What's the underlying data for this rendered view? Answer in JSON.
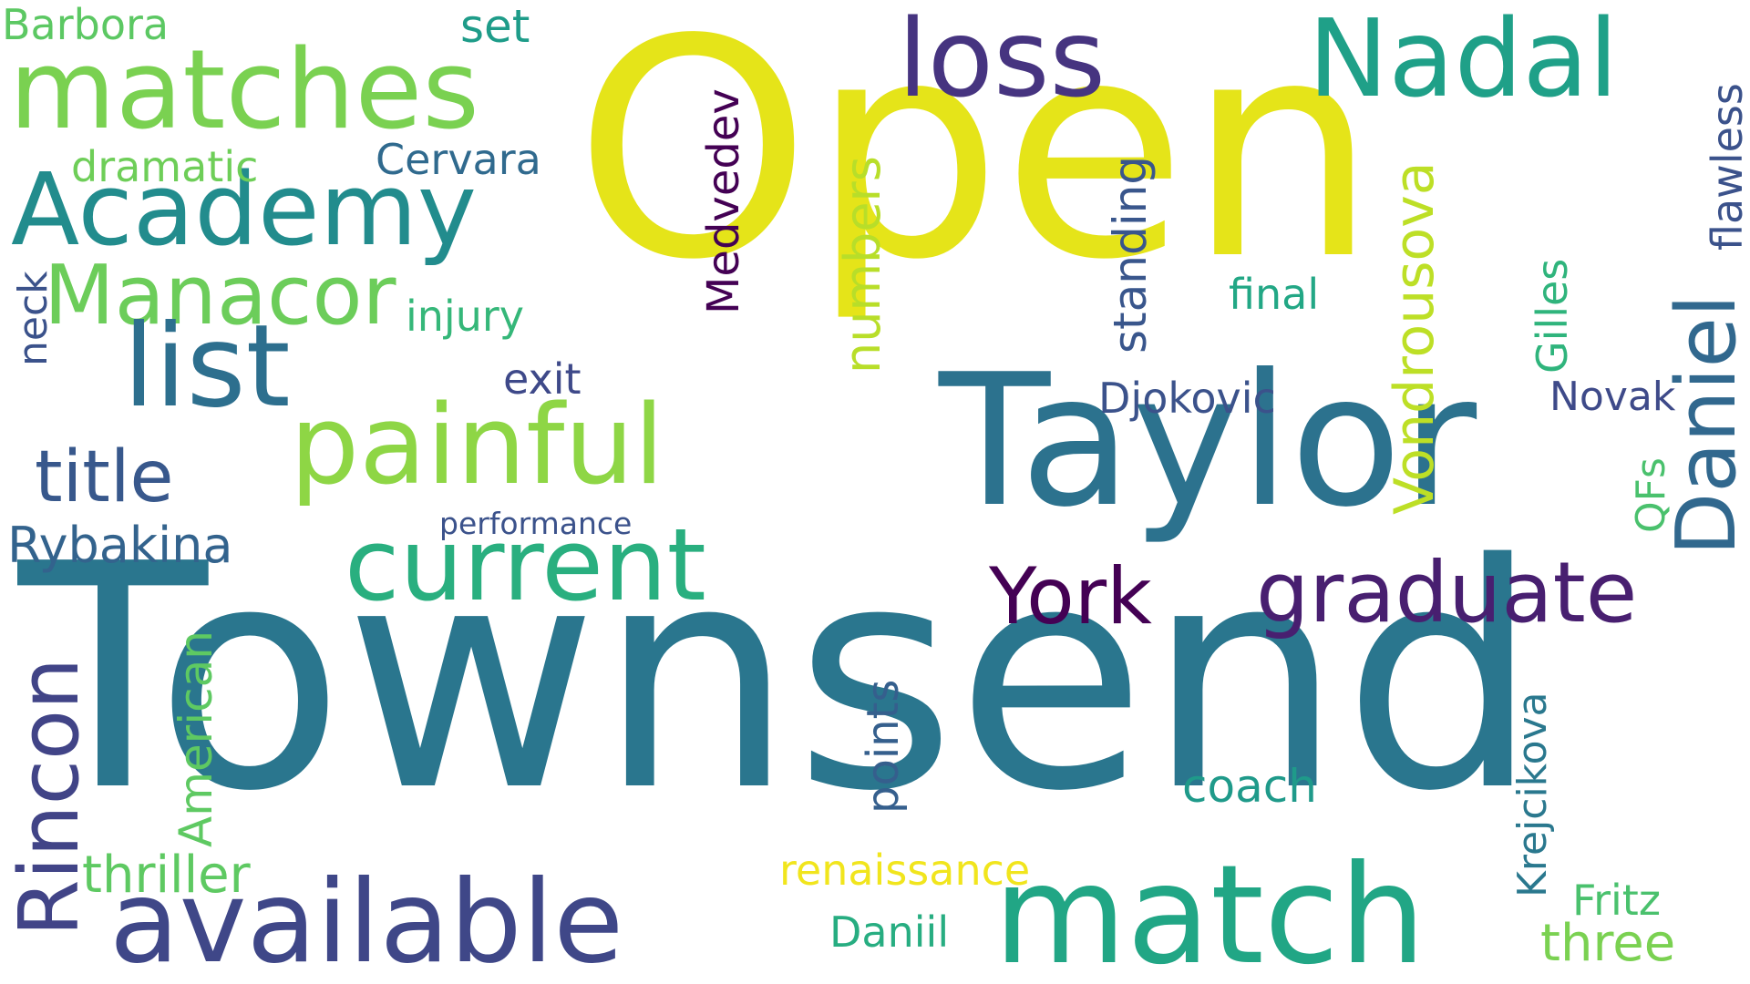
{
  "words": [
    {
      "id": "word-open",
      "text": "Open",
      "color": "#e5e419",
      "vertical": false
    },
    {
      "id": "word-townsend",
      "text": "Townsend",
      "color": "#2a768e",
      "vertical": false
    },
    {
      "id": "word-taylor",
      "text": "Taylor",
      "color": "#2c728e",
      "vertical": false
    },
    {
      "id": "word-match",
      "text": "match",
      "color": "#21a685",
      "vertical": false
    },
    {
      "id": "word-matches",
      "text": "matches",
      "color": "#7ad151",
      "vertical": false
    },
    {
      "id": "word-loss",
      "text": "loss",
      "color": "#463480",
      "vertical": false
    },
    {
      "id": "word-nadal",
      "text": "Nadal",
      "color": "#1fa088",
      "vertical": false
    },
    {
      "id": "word-academy",
      "text": "Academy",
      "color": "#228c8d",
      "vertical": false
    },
    {
      "id": "word-manacor",
      "text": "Manacor",
      "color": "#6ccd5a",
      "vertical": false
    },
    {
      "id": "word-list",
      "text": "list",
      "color": "#2d6f8e",
      "vertical": false
    },
    {
      "id": "word-painful",
      "text": "painful",
      "color": "#8ed645",
      "vertical": false
    },
    {
      "id": "word-current",
      "text": "current",
      "color": "#29af7f",
      "vertical": false
    },
    {
      "id": "word-title",
      "text": "title",
      "color": "#38588c",
      "vertical": false
    },
    {
      "id": "word-rybakina",
      "text": "Rybakina",
      "color": "#33638d",
      "vertical": false
    },
    {
      "id": "word-available",
      "text": "available",
      "color": "#3f4788",
      "vertical": false
    },
    {
      "id": "word-thriller",
      "text": "thriller",
      "color": "#5ec962",
      "vertical": false
    },
    {
      "id": "word-graduate",
      "text": "graduate",
      "color": "#481f70",
      "vertical": false
    },
    {
      "id": "word-york",
      "text": "York",
      "color": "#440154",
      "vertical": false
    },
    {
      "id": "word-djokovic",
      "text": "Djokovic",
      "color": "#3b528b",
      "vertical": false
    },
    {
      "id": "word-novak",
      "text": "Novak",
      "color": "#3e4a89",
      "vertical": false
    },
    {
      "id": "word-final",
      "text": "final",
      "color": "#22a785",
      "vertical": false
    },
    {
      "id": "word-exit",
      "text": "exit",
      "color": "#3e4989",
      "vertical": false
    },
    {
      "id": "word-injury",
      "text": "injury",
      "color": "#35b779",
      "vertical": false
    },
    {
      "id": "word-cervara",
      "text": "Cervara",
      "color": "#306a8e",
      "vertical": false
    },
    {
      "id": "word-dramatic",
      "text": "dramatic",
      "color": "#6ece58",
      "vertical": false
    },
    {
      "id": "word-set",
      "text": "set",
      "color": "#1e9c89",
      "vertical": false
    },
    {
      "id": "word-barbora",
      "text": "Barbora",
      "color": "#5cc863",
      "vertical": false
    },
    {
      "id": "word-performance",
      "text": "performance",
      "color": "#3b528b",
      "vertical": false
    },
    {
      "id": "word-renaissance",
      "text": "renaissance",
      "color": "#f1e51d",
      "vertical": false
    },
    {
      "id": "word-coach",
      "text": "coach",
      "color": "#1f9a8a",
      "vertical": false
    },
    {
      "id": "word-daniil",
      "text": "Daniil",
      "color": "#27ad81",
      "vertical": false
    },
    {
      "id": "word-fritz",
      "text": "Fritz",
      "color": "#4ac16d",
      "vertical": false
    },
    {
      "id": "word-three",
      "text": "three",
      "color": "#7ad151",
      "vertical": false
    },
    {
      "id": "word-medvedev",
      "text": "Medvedev",
      "color": "#440154",
      "vertical": true
    },
    {
      "id": "word-numbers",
      "text": "numbers",
      "color": "#b8de29",
      "vertical": true
    },
    {
      "id": "word-standing",
      "text": "standing",
      "color": "#39568c",
      "vertical": true
    },
    {
      "id": "word-vondrousova",
      "text": "Vondrousova",
      "color": "#bddf26",
      "vertical": true
    },
    {
      "id": "word-gilles",
      "text": "Gilles",
      "color": "#2fb47c",
      "vertical": true
    },
    {
      "id": "word-daniel",
      "text": "Daniel",
      "color": "#31688e",
      "vertical": true
    },
    {
      "id": "word-flawless",
      "text": "flawless",
      "color": "#3b528b",
      "vertical": true
    },
    {
      "id": "word-neck",
      "text": "neck",
      "color": "#3b528b",
      "vertical": true
    },
    {
      "id": "word-rincon",
      "text": "Rincon",
      "color": "#414487",
      "vertical": true
    },
    {
      "id": "word-american",
      "text": "American",
      "color": "#5ec962",
      "vertical": true
    },
    {
      "id": "word-points",
      "text": "points",
      "color": "#355f8d",
      "vertical": true
    },
    {
      "id": "word-qfs",
      "text": "QFs",
      "color": "#4ac16d",
      "vertical": true
    },
    {
      "id": "word-krejcikova",
      "text": "Krejcikova",
      "color": "#2a788e",
      "vertical": true
    }
  ]
}
